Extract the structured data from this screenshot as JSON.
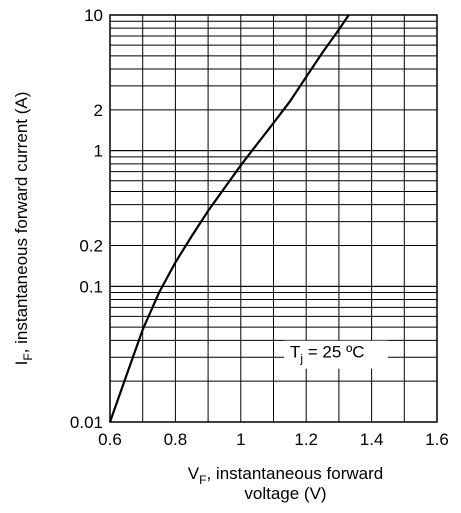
{
  "chart_data": {
    "type": "line",
    "xlabel": {
      "main": "V",
      "sub": "F",
      "rest": ", instantaneous forward",
      "line2": "voltage (V)"
    },
    "ylabel": {
      "main": "I",
      "sub": "F",
      "rest": ", instantaneous forward current  (A)"
    },
    "xlim": [
      0.6,
      1.6
    ],
    "ylim": [
      0.01,
      10
    ],
    "x_scale": "linear",
    "y_scale": "log",
    "grid": true,
    "x_ticks": [
      "0.6",
      "0.8",
      "1",
      "1.2",
      "1.4",
      "1.6"
    ],
    "y_ticks": [
      "0.01",
      "0.1",
      "0.2",
      "1",
      "2",
      "10"
    ],
    "annotation": {
      "main": "T",
      "sub": "j",
      "rest": " = 25 ºC"
    },
    "series": [
      {
        "x": [
          0.6,
          0.65,
          0.7,
          0.75,
          0.8,
          0.85,
          0.9,
          0.95,
          1.0,
          1.05,
          1.1,
          1.15,
          1.2,
          1.25,
          1.3,
          1.33
        ],
        "y": [
          0.01,
          0.022,
          0.048,
          0.09,
          0.15,
          0.235,
          0.36,
          0.53,
          0.78,
          1.12,
          1.6,
          2.3,
          3.5,
          5.3,
          7.8,
          10
        ]
      }
    ]
  }
}
